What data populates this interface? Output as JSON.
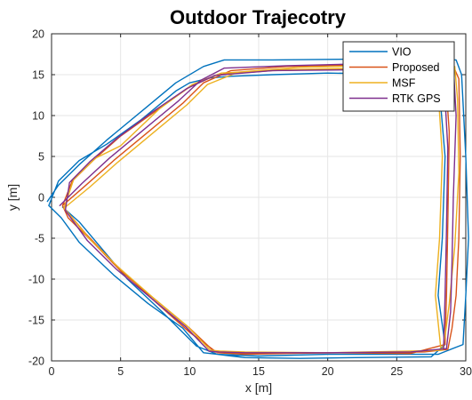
{
  "chart_data": {
    "type": "line",
    "title": "Outdoor Trajecotry",
    "xlabel": "x [m]",
    "ylabel": "y [m]",
    "xlim": [
      0,
      30
    ],
    "ylim": [
      -20,
      20
    ],
    "xticks": [
      0,
      5,
      10,
      15,
      20,
      25,
      30
    ],
    "yticks": [
      -20,
      -15,
      -10,
      -5,
      0,
      5,
      10,
      15,
      20
    ],
    "grid": true,
    "legend_position": "top-right",
    "series": [
      {
        "name": "VIO",
        "color": "#0072BD",
        "x": [
          -0.3,
          0.5,
          2.0,
          4.0,
          6.5,
          9.0,
          11.0,
          12.5,
          16.0,
          22.0,
          26.0,
          29.3,
          29.7,
          30.0,
          30.2,
          30.0,
          29.8,
          28.0,
          20.0,
          15.0,
          12.0,
          11.0,
          9.5,
          7.0,
          4.5,
          2.0,
          0.7,
          -0.2,
          0.5,
          2.0,
          4.0,
          6.5,
          9.0,
          10.0,
          11.5,
          13.0,
          16.0,
          20.0,
          24.0,
          27.0,
          28.2,
          28.5,
          28.3,
          28.0,
          28.5,
          27.5,
          22.0,
          18.0,
          14.0,
          12.0,
          10.5,
          8.0,
          5.5,
          3.5,
          2.0,
          0.8
        ],
        "y": [
          -0.5,
          1.5,
          4.0,
          7.0,
          10.5,
          14.0,
          16.0,
          16.8,
          16.8,
          16.9,
          17.0,
          16.8,
          15.0,
          5.0,
          -5.0,
          -12.0,
          -18.0,
          -19.2,
          -19.2,
          -19.4,
          -19.2,
          -19.0,
          -16.0,
          -13.0,
          -9.5,
          -5.5,
          -2.5,
          -1.0,
          2.0,
          4.5,
          6.5,
          9.5,
          13.0,
          14.0,
          14.6,
          14.8,
          15.0,
          15.2,
          15.1,
          14.8,
          11.0,
          5.0,
          -5.0,
          -12.0,
          -18.0,
          -19.5,
          -19.6,
          -19.7,
          -19.6,
          -19.2,
          -18.2,
          -14.0,
          -10.0,
          -6.0,
          -3.0,
          -1.2
        ]
      },
      {
        "name": "Proposed",
        "color": "#D95319",
        "x": [
          0.8,
          2.5,
          4.5,
          7.0,
          9.5,
          11.0,
          13.0,
          17.0,
          22.0,
          26.0,
          29.0,
          29.5,
          29.6,
          29.5,
          29.3,
          29.0,
          28.7,
          27.0,
          22.0,
          16.0,
          12.5,
          11.8,
          10.0,
          7.5,
          5.0,
          3.0,
          1.2,
          0.8,
          1.5,
          3.0,
          5.0,
          7.5,
          10.0,
          12.0,
          16.0,
          22.0,
          26.0,
          28.5,
          28.8,
          28.7,
          28.6,
          28.5,
          26.0,
          20.0,
          14.0,
          12.0,
          10.0,
          7.0,
          4.5,
          2.5,
          1.0
        ],
        "y": [
          -1.0,
          1.5,
          4.5,
          8.0,
          11.5,
          14.0,
          15.5,
          16.0,
          16.2,
          16.3,
          16.4,
          14.5,
          5.0,
          -5.0,
          -12.0,
          -16.0,
          -18.6,
          -18.9,
          -19.0,
          -19.1,
          -19.0,
          -18.9,
          -16.0,
          -12.5,
          -9.0,
          -5.5,
          -2.5,
          -1.0,
          2.0,
          4.5,
          7.5,
          10.5,
          13.5,
          15.0,
          15.5,
          15.7,
          15.8,
          15.5,
          8.0,
          -3.0,
          -12.0,
          -18.0,
          -19.1,
          -19.0,
          -19.2,
          -19.0,
          -16.5,
          -12.0,
          -8.0,
          -4.5,
          -1.5
        ]
      },
      {
        "name": "MSF",
        "color": "#EDB120",
        "x": [
          1.0,
          2.8,
          4.8,
          7.3,
          9.8,
          11.3,
          13.5,
          18.0,
          23.0,
          27.0,
          29.2,
          29.4,
          29.5,
          29.2,
          28.8,
          28.5,
          28.3,
          26.0,
          20.0,
          14.0,
          12.2,
          11.5,
          9.8,
          7.3,
          4.8,
          2.7,
          0.9,
          1.6,
          3.2,
          5.0,
          7.8,
          10.2,
          12.3,
          16.5,
          22.5,
          26.5,
          28.0,
          28.3,
          28.1,
          27.8,
          28.2
        ],
        "y": [
          -1.2,
          1.3,
          4.3,
          7.8,
          11.3,
          13.8,
          15.3,
          15.9,
          16.1,
          16.2,
          16.0,
          12.0,
          3.0,
          -6.0,
          -13.0,
          -17.0,
          -18.7,
          -18.8,
          -19.0,
          -18.9,
          -18.8,
          -18.7,
          -15.7,
          -12.2,
          -8.5,
          -5.0,
          -1.3,
          2.2,
          4.8,
          6.3,
          10.8,
          13.8,
          15.2,
          15.6,
          15.8,
          15.9,
          13.0,
          5.0,
          -5.0,
          -12.0,
          -18.6
        ]
      },
      {
        "name": "RTK GPS",
        "color": "#7E2F8E",
        "x": [
          0.6,
          2.2,
          4.2,
          6.7,
          9.2,
          10.8,
          12.5,
          17.0,
          22.0,
          26.0,
          29.1,
          29.3,
          29.1,
          29.0,
          28.9,
          28.6,
          26.0,
          20.0,
          14.0,
          12.1,
          11.4,
          9.7,
          7.2,
          4.7,
          2.6,
          1.0,
          1.3,
          2.8,
          4.8,
          7.2,
          9.8,
          11.8,
          16.0,
          22.0,
          26.0,
          28.4,
          28.7,
          28.6,
          28.5,
          28.4
        ],
        "y": [
          -1.0,
          1.7,
          4.8,
          8.3,
          11.8,
          14.3,
          15.8,
          16.1,
          16.3,
          16.4,
          16.2,
          10.0,
          0.0,
          -8.0,
          -14.0,
          -18.5,
          -18.9,
          -19.0,
          -19.0,
          -18.9,
          -18.8,
          -15.8,
          -12.3,
          -8.8,
          -5.3,
          -1.6,
          1.8,
          4.4,
          7.3,
          10.3,
          13.3,
          14.9,
          15.5,
          15.6,
          15.7,
          15.2,
          6.0,
          -4.0,
          -12.0,
          -18.4
        ]
      }
    ]
  }
}
